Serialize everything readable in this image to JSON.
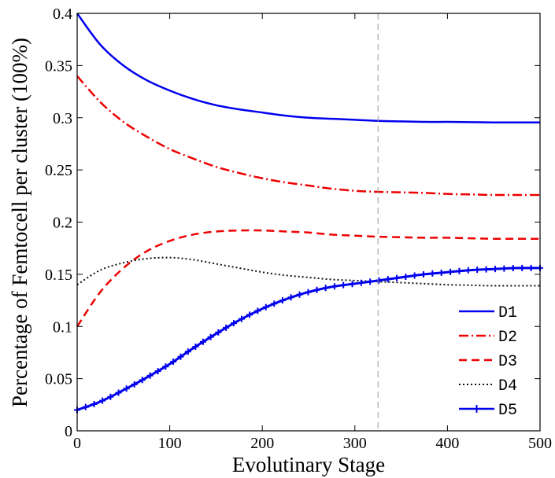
{
  "chart_data": {
    "type": "line",
    "xlabel": "Evolutinary Stage",
    "ylabel": "Percentage of Femtocell per cluster (100%)",
    "xlim": [
      0,
      500
    ],
    "ylim": [
      0,
      0.4
    ],
    "x_ticks": [
      "0",
      "100",
      "200",
      "300",
      "400",
      "500"
    ],
    "y_ticks": [
      "0",
      "0.05",
      "0.1",
      "0.15",
      "0.2",
      "0.25",
      "0.3",
      "0.35",
      "0.4"
    ],
    "grid": false,
    "legend_position": "bottom-right",
    "reference_line": {
      "x": 325,
      "style": "dashed",
      "color": "#999999"
    },
    "x": [
      0,
      25,
      50,
      75,
      100,
      125,
      150,
      175,
      200,
      225,
      250,
      275,
      300,
      325,
      350,
      375,
      400,
      425,
      450,
      475,
      500
    ],
    "series": [
      {
        "name": "D1",
        "color": "#0000ee",
        "style": "solid",
        "marker": "none",
        "values": [
          0.4,
          0.37,
          0.35,
          0.336,
          0.326,
          0.318,
          0.312,
          0.308,
          0.305,
          0.302,
          0.3,
          0.299,
          0.298,
          0.297,
          0.2965,
          0.296,
          0.296,
          0.2958,
          0.2955,
          0.2955,
          0.2955
        ]
      },
      {
        "name": "D2",
        "color": "#ee0000",
        "style": "dashdot",
        "marker": "none",
        "values": [
          0.34,
          0.315,
          0.296,
          0.282,
          0.27,
          0.261,
          0.253,
          0.247,
          0.242,
          0.238,
          0.235,
          0.232,
          0.23,
          0.229,
          0.2285,
          0.228,
          0.227,
          0.2265,
          0.226,
          0.226,
          0.226
        ]
      },
      {
        "name": "D3",
        "color": "#ee0000",
        "style": "dashed",
        "marker": "none",
        "values": [
          0.1,
          0.133,
          0.156,
          0.172,
          0.182,
          0.188,
          0.191,
          0.192,
          0.192,
          0.191,
          0.19,
          0.188,
          0.187,
          0.186,
          0.1855,
          0.185,
          0.185,
          0.1845,
          0.184,
          0.184,
          0.184
        ]
      },
      {
        "name": "D4",
        "color": "#111111",
        "style": "dotted",
        "marker": "none",
        "values": [
          0.14,
          0.154,
          0.161,
          0.165,
          0.166,
          0.164,
          0.16,
          0.156,
          0.152,
          0.149,
          0.147,
          0.145,
          0.144,
          0.143,
          0.142,
          0.141,
          0.14,
          0.1395,
          0.139,
          0.139,
          0.139
        ]
      },
      {
        "name": "D5",
        "color": "#0000ee",
        "style": "solid",
        "marker": "plus",
        "values": [
          0.02,
          0.028,
          0.039,
          0.051,
          0.064,
          0.079,
          0.093,
          0.106,
          0.117,
          0.126,
          0.133,
          0.138,
          0.141,
          0.144,
          0.147,
          0.15,
          0.152,
          0.154,
          0.155,
          0.156,
          0.156
        ]
      }
    ]
  }
}
